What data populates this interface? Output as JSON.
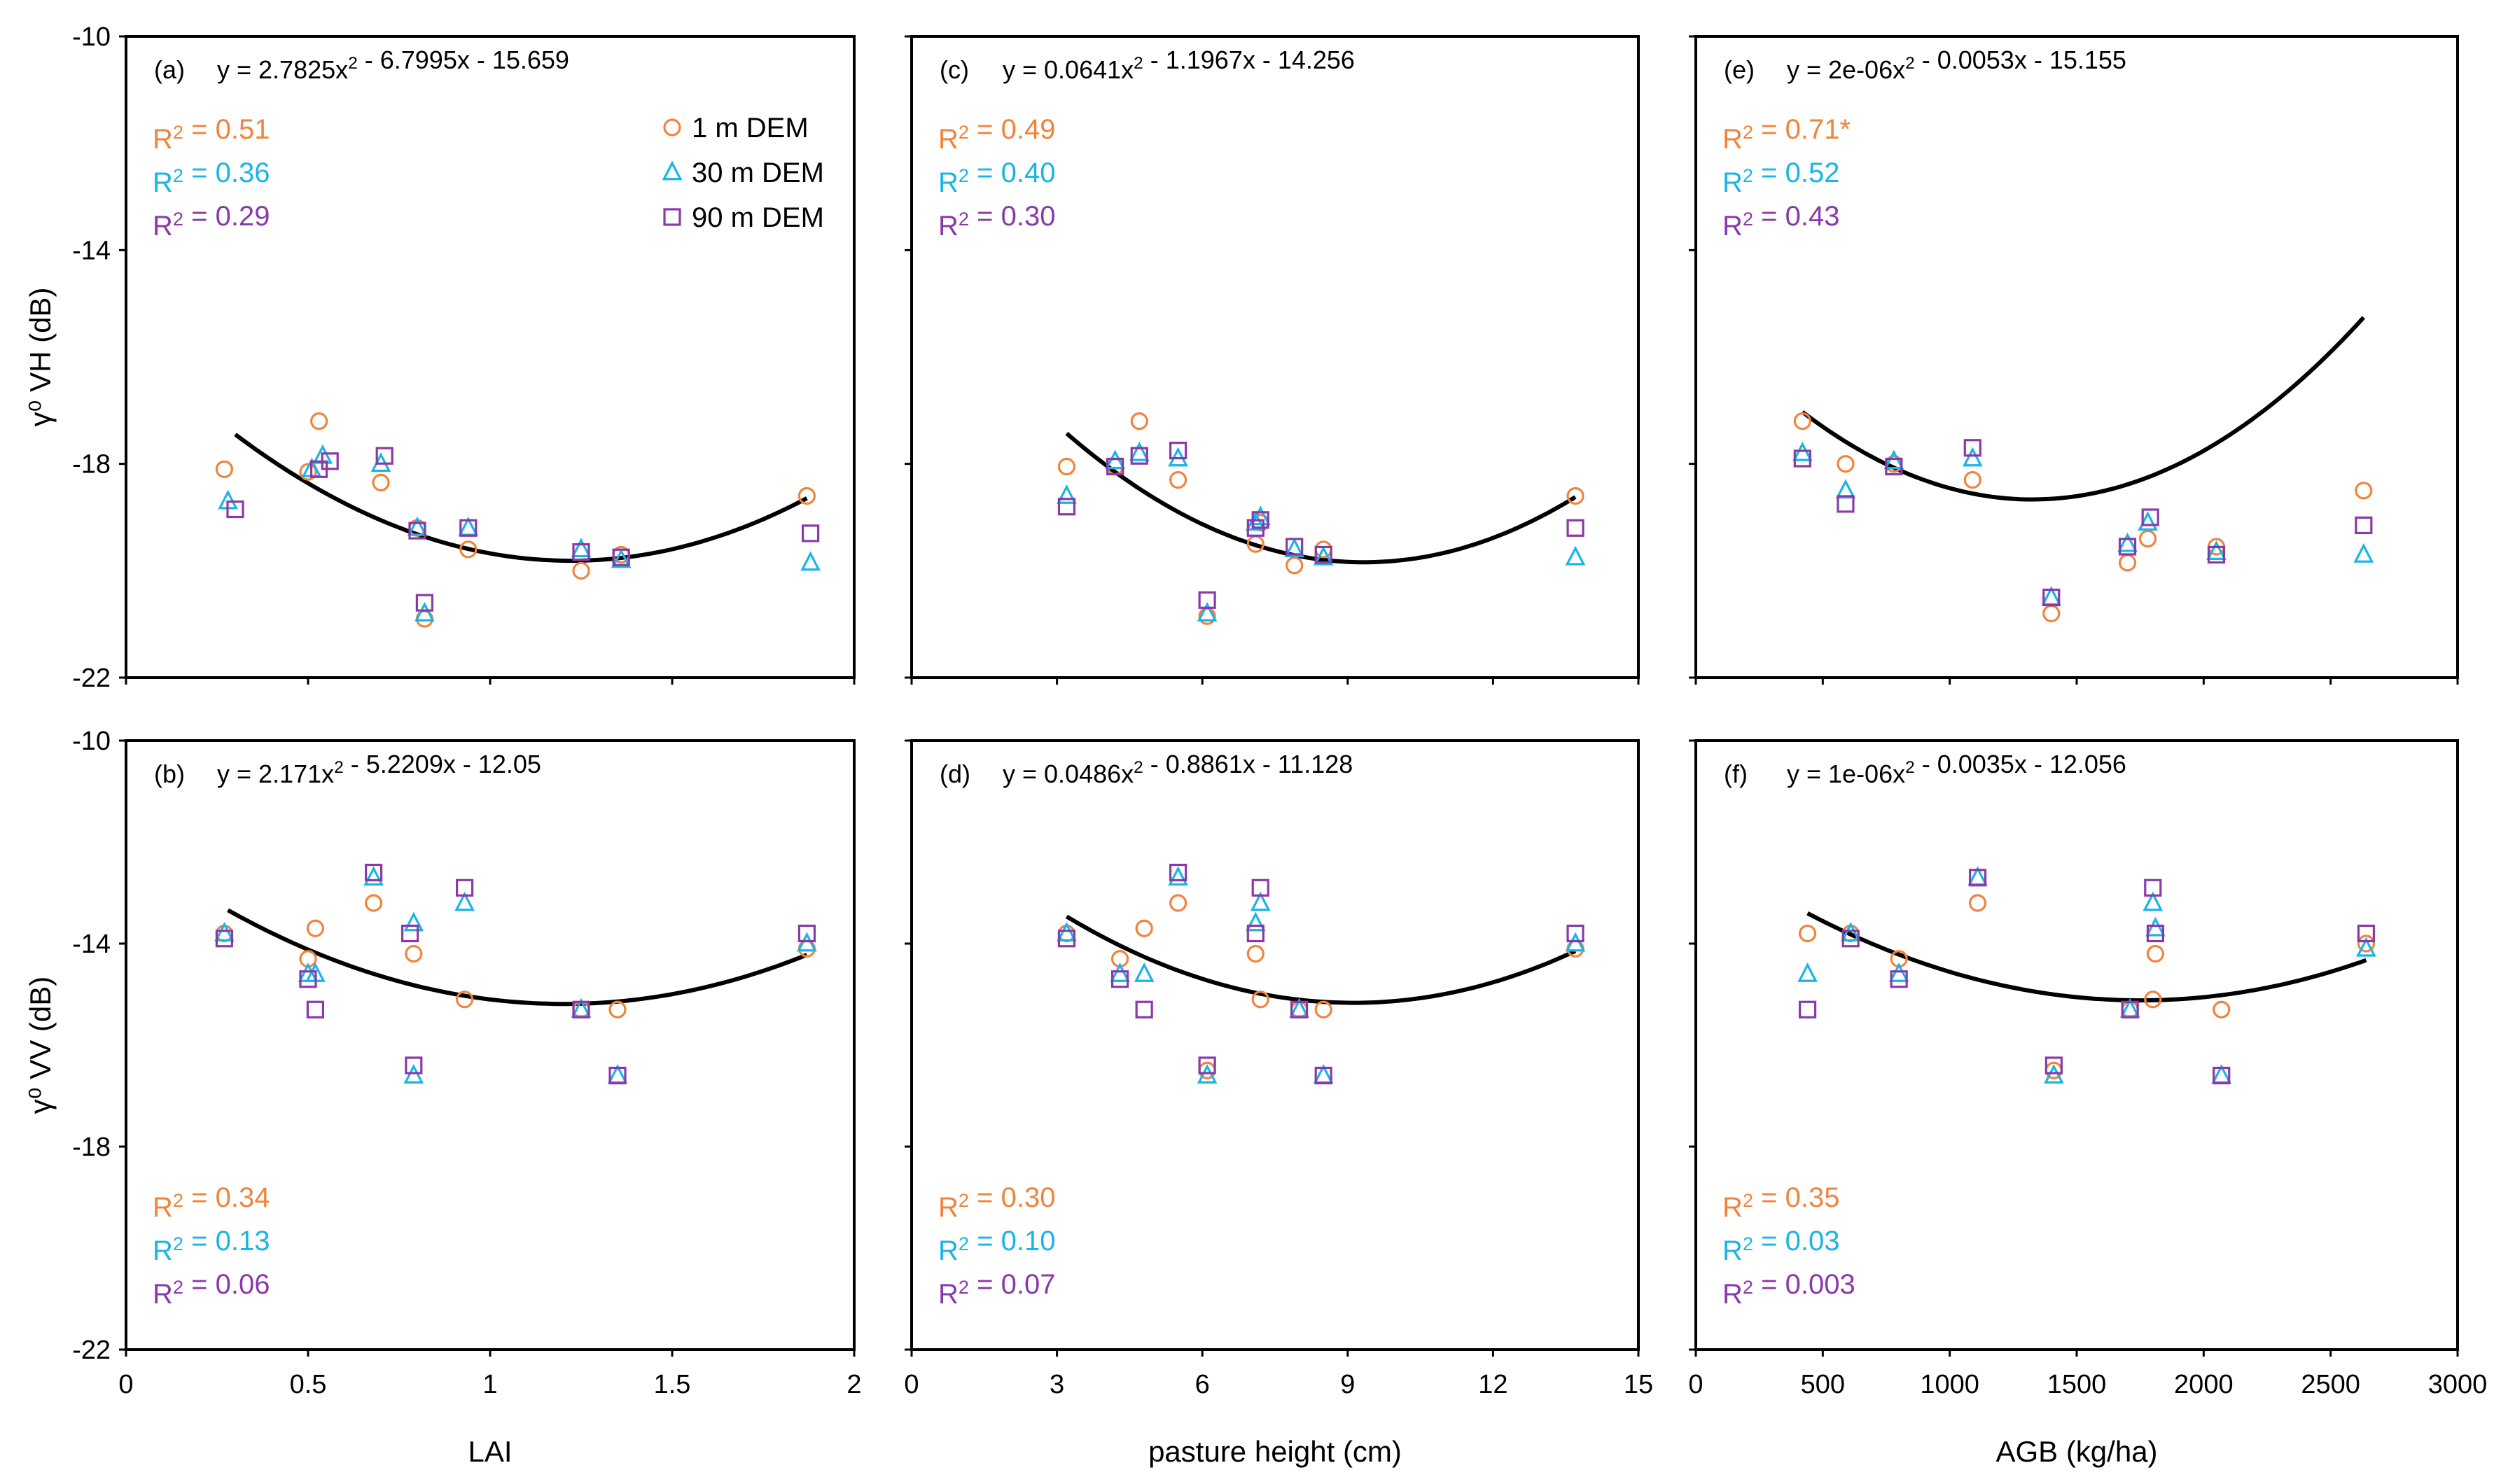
{
  "chart_data": [
    {
      "panel": "a",
      "type": "scatter",
      "x_label": "",
      "y_label": "γ⁰ VH (dB)",
      "xlim": [
        0,
        2
      ],
      "ylim": [
        -22,
        -10
      ],
      "x_ticks": [],
      "y_ticks": [
        "-10",
        "-14",
        "-18",
        "-22"
      ],
      "equation": "y = 2.7825x² - 6.7995x - 15.659",
      "label": "(a)",
      "curve": [
        2.7825,
        -6.7995,
        -15.659
      ],
      "curve_x": [
        0.3,
        1.87
      ],
      "r2": [
        "R² = 0.51",
        "R² = 0.36",
        "R² = 0.29"
      ],
      "r2_pos": "top-left",
      "series": [
        {
          "name": "1 m DEM",
          "marker": "circle",
          "color": "#f0843c",
          "x": [
            0.27,
            0.5,
            0.53,
            0.7,
            0.8,
            0.82,
            0.94,
            1.25,
            1.36,
            1.87
          ],
          "y": [
            -18.1,
            -18.15,
            -17.2,
            -18.35,
            -19.2,
            -20.9,
            -19.6,
            -20.0,
            -19.7,
            -18.6
          ]
        },
        {
          "name": "30 m DEM",
          "marker": "triangle",
          "color": "#1ab4e6",
          "x": [
            0.28,
            0.51,
            0.54,
            0.7,
            0.8,
            0.82,
            0.94,
            1.25,
            1.36,
            1.88
          ],
          "y": [
            -18.7,
            -18.1,
            -17.85,
            -18.0,
            -19.2,
            -20.8,
            -19.2,
            -19.6,
            -19.8,
            -19.85
          ]
        },
        {
          "name": "90 m DEM",
          "marker": "square",
          "color": "#8a3aa8",
          "x": [
            0.3,
            0.53,
            0.56,
            0.71,
            0.8,
            0.82,
            0.94,
            1.25,
            1.36,
            1.88
          ],
          "y": [
            -18.85,
            -18.1,
            -17.95,
            -17.85,
            -19.25,
            -20.6,
            -19.2,
            -19.65,
            -19.75,
            -19.3
          ]
        }
      ]
    },
    {
      "panel": "b",
      "type": "scatter",
      "x_label": "LAI",
      "y_label": "γ⁰ VV (dB)",
      "xlim": [
        0,
        2
      ],
      "ylim": [
        -22,
        -10
      ],
      "x_ticks": [
        "0",
        "0.5",
        "1",
        "1.5",
        "2"
      ],
      "y_ticks": [
        "-10",
        "-14",
        "-18",
        "-22"
      ],
      "equation": "y = 2.171x² - 5.2209x - 12.05",
      "label": "(b)",
      "curve": [
        2.171,
        -5.2209,
        -12.05
      ],
      "curve_x": [
        0.28,
        1.87
      ],
      "r2": [
        "R² = 0.34",
        "R² = 0.13",
        "R² = 0.06"
      ],
      "r2_pos": "bottom-left",
      "series": [
        {
          "name": "1 m DEM",
          "marker": "circle",
          "color": "#f0843c",
          "x": [
            0.27,
            0.5,
            0.52,
            0.68,
            0.79,
            0.93,
            1.25,
            1.35,
            1.87
          ],
          "y": [
            -13.8,
            -14.3,
            -13.7,
            -13.2,
            -14.2,
            -15.1,
            -15.3,
            -15.3,
            -14.1
          ]
        },
        {
          "name": "30 m DEM",
          "marker": "triangle",
          "color": "#1ab4e6",
          "x": [
            0.27,
            0.5,
            0.52,
            0.68,
            0.79,
            0.79,
            0.93,
            1.25,
            1.35,
            1.87
          ],
          "y": [
            -13.8,
            -14.6,
            -14.6,
            -12.7,
            -13.6,
            -16.6,
            -13.2,
            -15.3,
            -16.6,
            -14.0
          ]
        },
        {
          "name": "90 m DEM",
          "marker": "square",
          "color": "#8a3aa8",
          "x": [
            0.27,
            0.5,
            0.52,
            0.68,
            0.78,
            0.79,
            0.93,
            1.25,
            1.35,
            1.87
          ],
          "y": [
            -13.9,
            -14.7,
            -15.3,
            -12.6,
            -13.8,
            -16.4,
            -12.9,
            -15.3,
            -16.6,
            -13.8
          ]
        }
      ]
    },
    {
      "panel": "c",
      "type": "scatter",
      "x_label": "",
      "y_label": "",
      "xlim": [
        0,
        15
      ],
      "ylim": [
        -22,
        -10
      ],
      "x_ticks": [],
      "y_ticks": [],
      "equation": "y = 0.0641x² - 1.1967x - 14.256",
      "label": "(c)",
      "curve": [
        0.0641,
        -1.1967,
        -14.256
      ],
      "curve_x": [
        3.2,
        13.7
      ],
      "r2": [
        "R² = 0.49",
        "R² = 0.40",
        "R² = 0.30"
      ],
      "r2_pos": "top-left",
      "series": [
        {
          "name": "1 m DEM",
          "marker": "circle",
          "color": "#f0843c",
          "x": [
            3.2,
            4.2,
            4.7,
            5.5,
            6.1,
            7.1,
            7.2,
            7.9,
            8.5,
            13.7
          ],
          "y": [
            -18.05,
            -18.05,
            -17.2,
            -18.3,
            -20.85,
            -19.5,
            -19.1,
            -19.9,
            -19.6,
            -18.6
          ]
        },
        {
          "name": "30 m DEM",
          "marker": "triangle",
          "color": "#1ab4e6",
          "x": [
            3.2,
            4.2,
            4.7,
            5.5,
            6.1,
            7.1,
            7.2,
            7.9,
            8.5,
            13.7
          ],
          "y": [
            -18.6,
            -17.95,
            -17.8,
            -17.9,
            -20.8,
            -19.1,
            -19.0,
            -19.6,
            -19.75,
            -19.75
          ]
        },
        {
          "name": "90 m DEM",
          "marker": "square",
          "color": "#8a3aa8",
          "x": [
            3.2,
            4.2,
            4.7,
            5.5,
            6.1,
            7.1,
            7.2,
            7.9,
            8.5,
            13.7
          ],
          "y": [
            -18.8,
            -18.05,
            -17.85,
            -17.75,
            -20.55,
            -19.2,
            -19.05,
            -19.55,
            -19.7,
            -19.2
          ]
        }
      ]
    },
    {
      "panel": "d",
      "type": "scatter",
      "x_label": "pasture height (cm)",
      "y_label": "",
      "xlim": [
        0,
        15
      ],
      "ylim": [
        -22,
        -10
      ],
      "x_ticks": [
        "0",
        "3",
        "6",
        "9",
        "12",
        "15"
      ],
      "y_ticks": [],
      "equation": "y = 0.0486x² - 0.8861x - 11.128",
      "label": "(d)",
      "curve": [
        0.0486,
        -0.8861,
        -11.128
      ],
      "curve_x": [
        3.2,
        13.7
      ],
      "r2": [
        "R² = 0.30",
        "R² = 0.10",
        "R² = 0.07"
      ],
      "r2_pos": "bottom-left",
      "series": [
        {
          "name": "1 m DEM",
          "marker": "circle",
          "color": "#f0843c",
          "x": [
            3.2,
            4.3,
            4.8,
            5.5,
            6.1,
            7.1,
            7.2,
            8.0,
            8.5,
            13.7
          ],
          "y": [
            -13.8,
            -14.3,
            -13.7,
            -13.2,
            -16.5,
            -14.2,
            -15.1,
            -15.3,
            -15.3,
            -14.1
          ]
        },
        {
          "name": "30 m DEM",
          "marker": "triangle",
          "color": "#1ab4e6",
          "x": [
            3.2,
            4.3,
            4.8,
            5.5,
            6.1,
            7.1,
            7.2,
            8.0,
            8.5,
            13.7
          ],
          "y": [
            -13.8,
            -14.6,
            -14.6,
            -12.7,
            -16.6,
            -13.6,
            -13.2,
            -15.3,
            -16.6,
            -14.0
          ]
        },
        {
          "name": "90 m DEM",
          "marker": "square",
          "color": "#8a3aa8",
          "x": [
            3.2,
            4.3,
            4.8,
            5.5,
            6.1,
            7.1,
            7.2,
            8.0,
            8.5,
            13.7
          ],
          "y": [
            -13.9,
            -14.7,
            -15.3,
            -12.6,
            -16.4,
            -13.8,
            -12.9,
            -15.3,
            -16.6,
            -13.8
          ]
        }
      ]
    },
    {
      "panel": "e",
      "type": "scatter",
      "x_label": "",
      "y_label": "",
      "xlim": [
        0,
        3000
      ],
      "ylim": [
        -22,
        -10
      ],
      "x_ticks": [],
      "y_ticks": [],
      "equation": "y = 2e-06x² - 0.0053x - 15.155",
      "label": "(e)",
      "curve": [
        2e-06,
        -0.0053,
        -15.155
      ],
      "curve_x": [
        420,
        2630
      ],
      "r2": [
        "R² = 0.71*",
        "R² = 0.52",
        "R² = 0.43"
      ],
      "r2_pos": "top-left",
      "series": [
        {
          "name": "1 m DEM",
          "marker": "circle",
          "color": "#f0843c",
          "x": [
            420,
            590,
            780,
            1090,
            1400,
            1700,
            1780,
            2050,
            2630
          ],
          "y": [
            -17.2,
            -18.0,
            -18.0,
            -18.3,
            -20.8,
            -19.85,
            -19.4,
            -19.55,
            -18.5
          ]
        },
        {
          "name": "30 m DEM",
          "marker": "triangle",
          "color": "#1ab4e6",
          "x": [
            420,
            590,
            780,
            1090,
            1400,
            1700,
            1780,
            2050,
            2630
          ],
          "y": [
            -17.8,
            -18.5,
            -17.95,
            -17.9,
            -20.5,
            -19.5,
            -19.1,
            -19.65,
            -19.7
          ]
        },
        {
          "name": "90 m DEM",
          "marker": "square",
          "color": "#8a3aa8",
          "x": [
            420,
            590,
            780,
            1090,
            1400,
            1700,
            1790,
            2050,
            2630
          ],
          "y": [
            -17.9,
            -18.75,
            -18.05,
            -17.7,
            -20.5,
            -19.55,
            -19.0,
            -19.7,
            -19.15
          ]
        }
      ]
    },
    {
      "panel": "f",
      "type": "scatter",
      "x_label": "AGB (kg/ha)",
      "y_label": "",
      "xlim": [
        0,
        3000
      ],
      "ylim": [
        -22,
        -10
      ],
      "x_ticks": [
        "0",
        "500",
        "1000",
        "1500",
        "2000",
        "2500",
        "3000"
      ],
      "y_ticks": [],
      "equation": "y = 1e-06x² - 0.0035x - 12.056",
      "label": "(f)",
      "curve": [
        1e-06,
        -0.0035,
        -12.056
      ],
      "curve_x": [
        440,
        2640
      ],
      "r2": [
        "R² = 0.35",
        "R² = 0.03",
        "R² = 0.003"
      ],
      "r2_pos": "bottom-left",
      "series": [
        {
          "name": "1 m DEM",
          "marker": "circle",
          "color": "#f0843c",
          "x": [
            440,
            610,
            800,
            1110,
            1410,
            1710,
            1800,
            1810,
            2070,
            2640
          ],
          "y": [
            -13.8,
            -13.8,
            -14.3,
            -13.2,
            -16.5,
            -15.3,
            -15.1,
            -14.2,
            -15.3,
            -14.0
          ]
        },
        {
          "name": "30 m DEM",
          "marker": "triangle",
          "color": "#1ab4e6",
          "x": [
            440,
            610,
            800,
            1110,
            1410,
            1710,
            1800,
            1810,
            2070,
            2640
          ],
          "y": [
            -14.6,
            -13.8,
            -14.6,
            -12.7,
            -16.6,
            -15.3,
            -13.2,
            -13.7,
            -16.6,
            -14.1
          ]
        },
        {
          "name": "90 m DEM",
          "marker": "square",
          "color": "#8a3aa8",
          "x": [
            440,
            610,
            800,
            1110,
            1410,
            1710,
            1800,
            1810,
            2070,
            2640
          ],
          "y": [
            -15.3,
            -13.9,
            -14.7,
            -12.7,
            -16.4,
            -15.3,
            -12.9,
            -13.8,
            -16.6,
            -13.8
          ]
        }
      ]
    }
  ],
  "legend": [
    {
      "name": "1 m DEM",
      "marker": "circle",
      "color": "#f0843c"
    },
    {
      "name": "30 m DEM",
      "marker": "triangle",
      "color": "#1ab4e6"
    },
    {
      "name": "90 m DEM",
      "marker": "square",
      "color": "#8a3aa8"
    }
  ],
  "colors": {
    "r2": [
      "#f0843c",
      "#1ab4e6",
      "#8a3aa8"
    ],
    "curve": "#000000",
    "frame": "#000000"
  }
}
